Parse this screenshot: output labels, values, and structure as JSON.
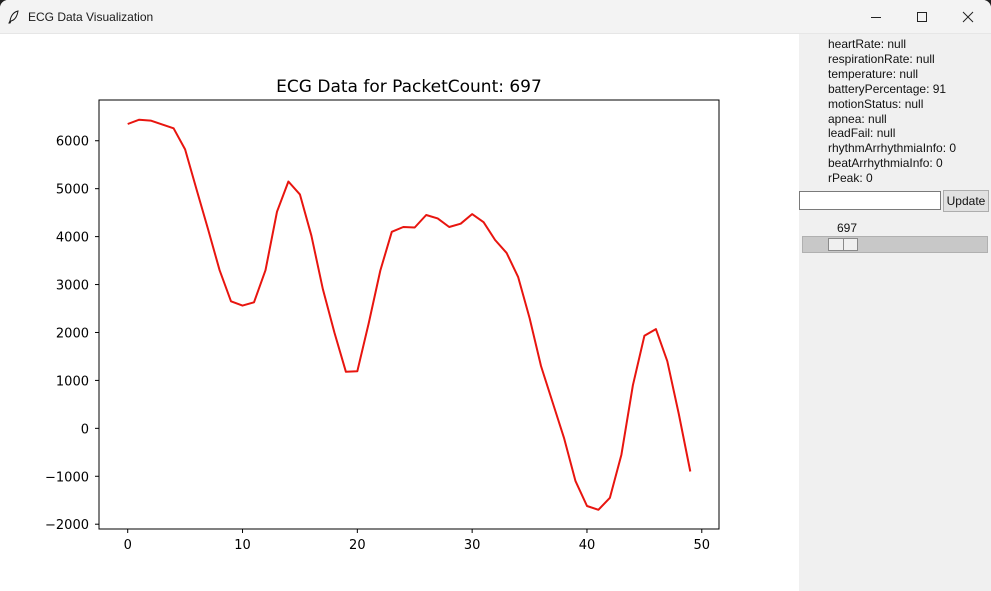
{
  "window": {
    "title": "ECG Data Visualization"
  },
  "info": {
    "lines": [
      "heartRate: null",
      "respirationRate: null",
      "temperature: null",
      "batteryPercentage: 91",
      "motionStatus: null",
      "apnea: null",
      "leadFail: null",
      "rhythmArrhythmiaInfo: 0",
      "beatArrhythmiaInfo: 0",
      "rPeak: 0"
    ]
  },
  "controls": {
    "entry_value": "",
    "update_label": "Update",
    "slider_value": "697",
    "slider_fraction": 0.16
  },
  "chart_data": {
    "type": "line",
    "title": "ECG Data for PacketCount: 697",
    "xlabel": "",
    "ylabel": "",
    "xlim": [
      -2.5,
      51.5
    ],
    "ylim": [
      -2100,
      6850
    ],
    "xticks": [
      0,
      10,
      20,
      30,
      40,
      50
    ],
    "yticks": [
      -2000,
      -1000,
      0,
      1000,
      2000,
      3000,
      4000,
      5000,
      6000
    ],
    "grid": false,
    "color": "#e8150f",
    "series": [
      {
        "x": [
          0,
          1,
          2,
          3,
          4,
          5,
          6,
          7,
          8,
          9,
          10,
          11,
          12,
          13,
          14,
          15,
          16,
          17,
          18,
          19,
          20,
          21,
          22,
          23,
          24,
          25,
          26,
          27,
          28,
          29,
          30,
          31,
          32,
          33,
          34,
          35,
          36,
          37,
          38,
          39,
          40,
          41,
          42,
          43,
          44,
          45,
          46,
          47,
          48,
          49
        ],
        "values": [
          6350,
          6440,
          6420,
          6340,
          6260,
          5820,
          4980,
          4150,
          3300,
          2650,
          2560,
          2630,
          3300,
          4520,
          5150,
          4880,
          4020,
          2900,
          2000,
          1180,
          1190,
          2200,
          3290,
          4100,
          4200,
          4190,
          4450,
          4380,
          4200,
          4270,
          4470,
          4300,
          3930,
          3660,
          3160,
          2300,
          1300,
          550,
          -200,
          -1100,
          -1620,
          -1700,
          -1450,
          -550,
          900,
          1930,
          2070,
          1400,
          300,
          -900
        ]
      }
    ]
  }
}
